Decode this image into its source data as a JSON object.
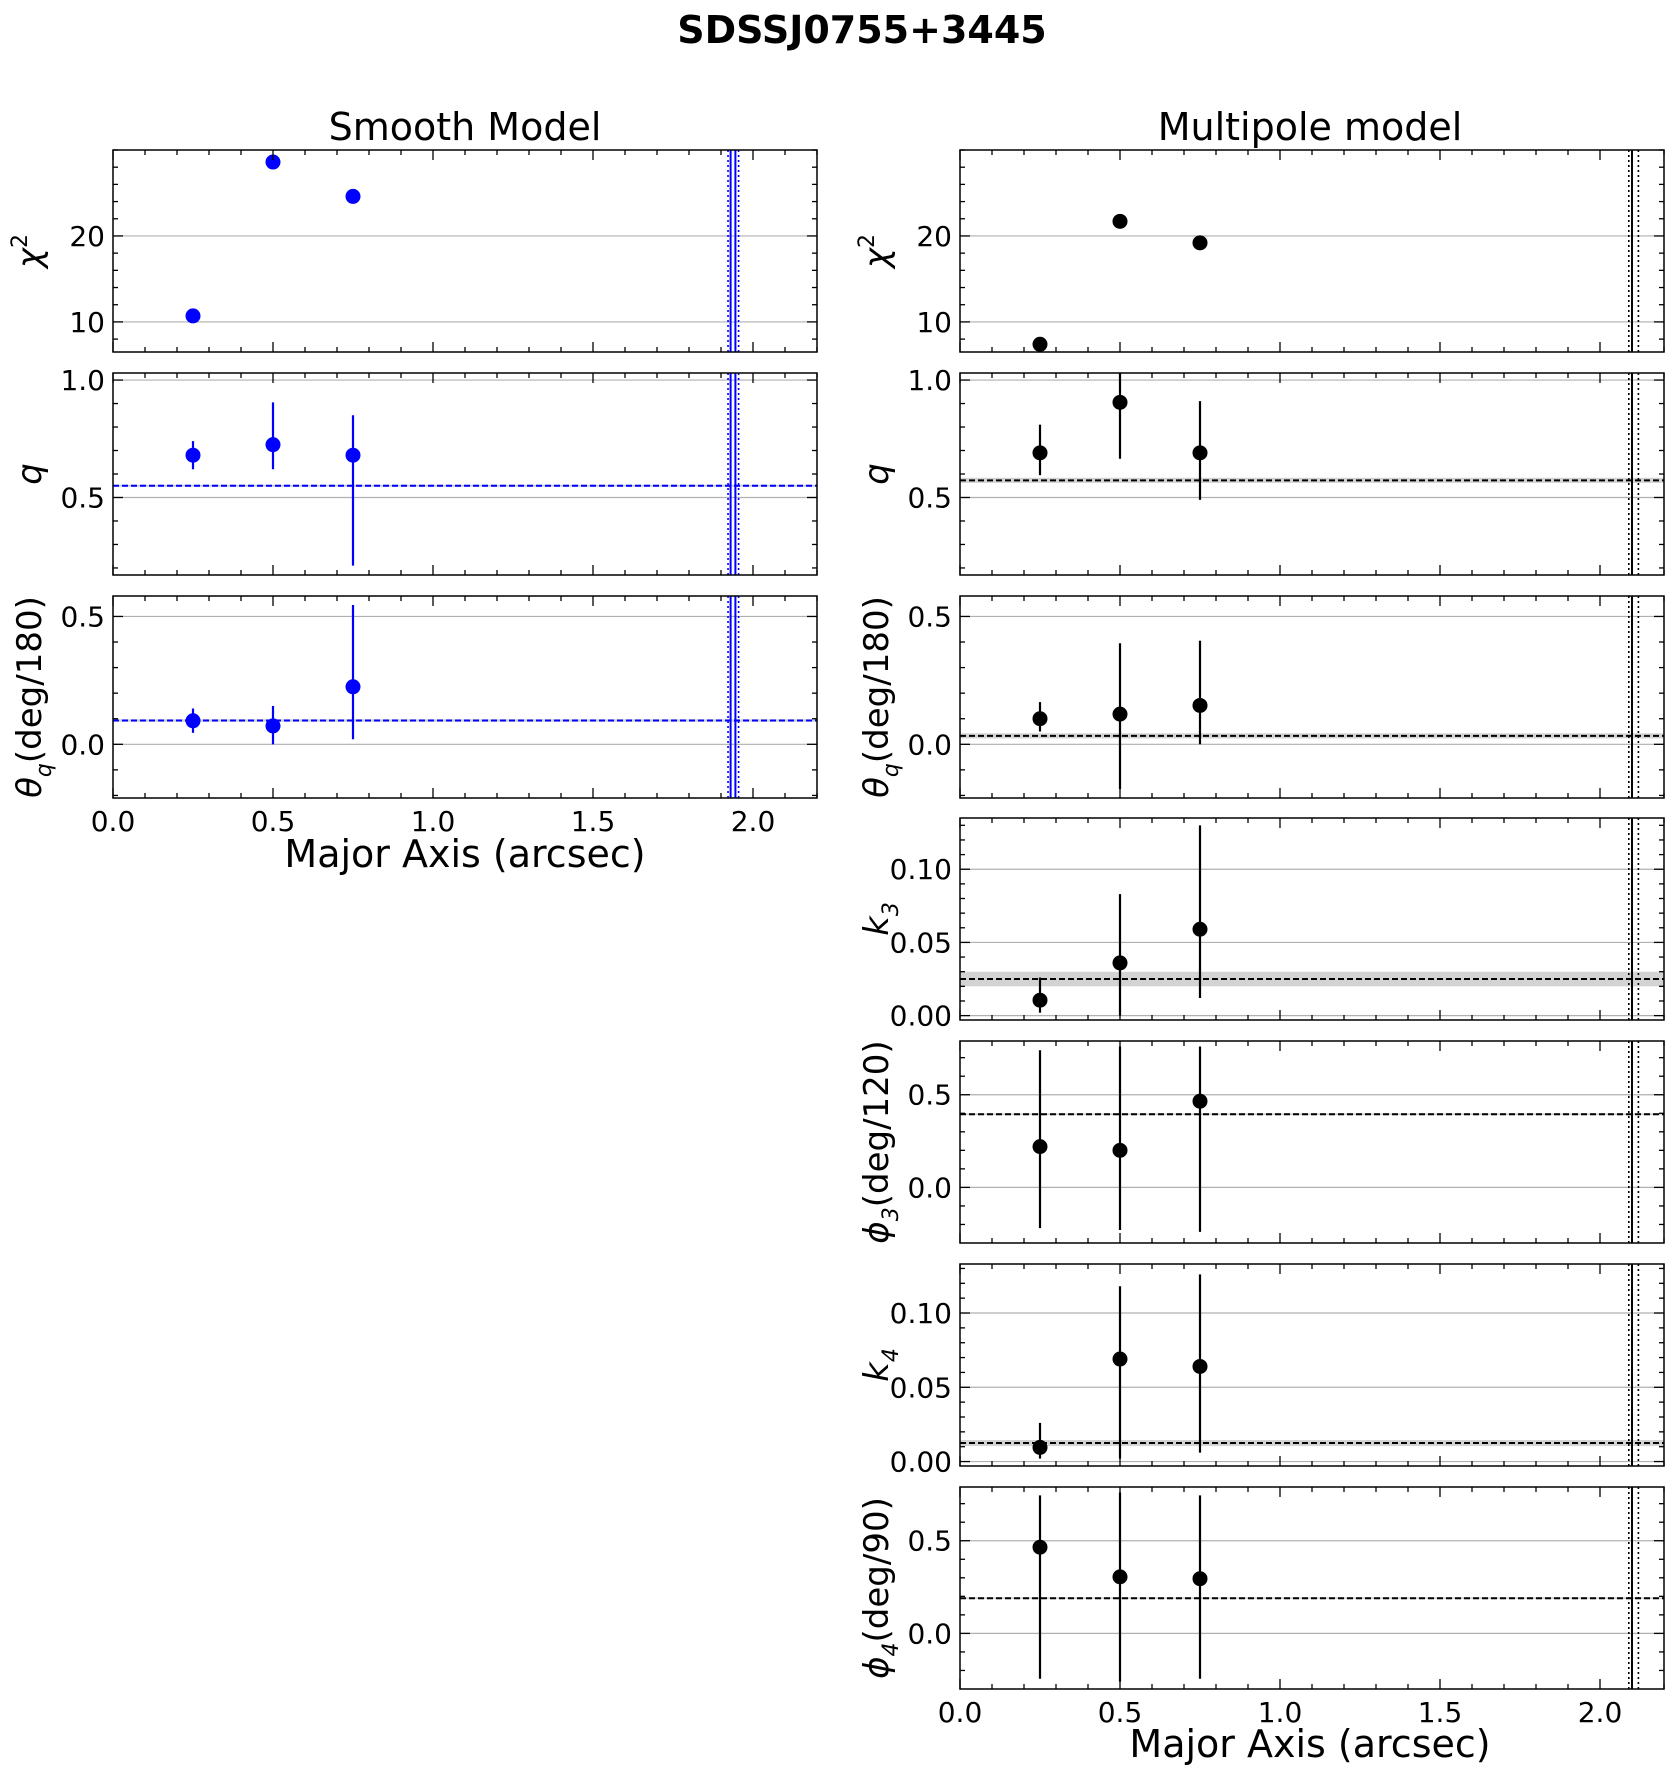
{
  "figure": {
    "title": "SDSSJ0755+3445",
    "left_column_title": "Smooth Model",
    "right_column_title": "Multipole model",
    "xlabel": "Major Axis (arcsec)",
    "xlim": [
      0.0,
      2.2
    ],
    "xticks": [
      0.0,
      0.5,
      1.0,
      1.5,
      2.0
    ],
    "xtick_labels": [
      "0.0",
      "0.5",
      "1.0",
      "1.5",
      "2.0"
    ],
    "colors": {
      "smooth": "#0000ff",
      "multipole": "#000000",
      "grid": "#b0b0b0",
      "band": "#c8c8c8"
    }
  },
  "chart_data": [
    {
      "id": "smooth-chi2",
      "panel": "smooth",
      "type": "scatter",
      "ylabel_main": "χ",
      "ylabel_sup": "2",
      "ylabel_sub": "",
      "ylabel_rest": "",
      "ylim": [
        6.5,
        30
      ],
      "yticks": [
        10,
        20
      ],
      "ytick_labels": [
        "10",
        "20"
      ],
      "points": [
        {
          "x": 0.25,
          "y": 10.7
        },
        {
          "x": 0.5,
          "y": 28.6
        },
        {
          "x": 0.75,
          "y": 24.6
        }
      ],
      "vlines": [
        1.93,
        1.945
      ],
      "vlines_dotted": [
        1.922,
        1.955
      ],
      "show_xticklabels": false
    },
    {
      "id": "smooth-q",
      "panel": "smooth",
      "type": "scatter",
      "ylabel_main": "q",
      "ylabel_sup": "",
      "ylabel_sub": "",
      "ylabel_rest": "",
      "ylim": [
        0.17,
        1.03
      ],
      "yticks": [
        0.5,
        1.0
      ],
      "ytick_labels": [
        "0.5",
        "1.0"
      ],
      "points": [
        {
          "x": 0.25,
          "y": 0.68,
          "yerr_low": 0.62,
          "yerr_high": 0.74
        },
        {
          "x": 0.5,
          "y": 0.725,
          "yerr_low": 0.62,
          "yerr_high": 0.905
        },
        {
          "x": 0.75,
          "y": 0.68,
          "yerr_low": 0.21,
          "yerr_high": 0.85
        }
      ],
      "hline": 0.55,
      "band": [
        0.545,
        0.555
      ],
      "vlines": [
        1.93,
        1.945
      ],
      "vlines_dotted": [
        1.922,
        1.955
      ],
      "show_xticklabels": false
    },
    {
      "id": "smooth-theta",
      "panel": "smooth",
      "type": "scatter",
      "ylabel_main": "θ",
      "ylabel_sup": "",
      "ylabel_sub": "q",
      "ylabel_rest": "(deg/180)",
      "ylim": [
        -0.21,
        0.58
      ],
      "yticks": [
        0.0,
        0.5
      ],
      "ytick_labels": [
        "0.0",
        "0.5"
      ],
      "points": [
        {
          "x": 0.25,
          "y": 0.092,
          "yerr_low": 0.045,
          "yerr_high": 0.14
        },
        {
          "x": 0.5,
          "y": 0.072,
          "yerr_low": 0.0,
          "yerr_high": 0.15
        },
        {
          "x": 0.75,
          "y": 0.225,
          "yerr_low": 0.02,
          "yerr_high": 0.545
        }
      ],
      "hline": 0.093,
      "band": [
        0.088,
        0.098
      ],
      "vlines": [
        1.93,
        1.945
      ],
      "vlines_dotted": [
        1.922,
        1.955
      ],
      "show_xticklabels": true
    },
    {
      "id": "multi-chi2",
      "panel": "multipole",
      "type": "scatter",
      "ylabel_main": "χ",
      "ylabel_sup": "2",
      "ylabel_sub": "",
      "ylabel_rest": "",
      "ylim": [
        6.5,
        30
      ],
      "yticks": [
        10,
        20
      ],
      "ytick_labels": [
        "10",
        "20"
      ],
      "points": [
        {
          "x": 0.25,
          "y": 7.4
        },
        {
          "x": 0.5,
          "y": 21.7
        },
        {
          "x": 0.75,
          "y": 19.2
        }
      ],
      "vlines": [
        2.1
      ],
      "vlines_dotted": [
        2.09,
        2.12
      ],
      "show_xticklabels": false
    },
    {
      "id": "multi-q",
      "panel": "multipole",
      "type": "scatter",
      "ylabel_main": "q",
      "ylabel_sup": "",
      "ylabel_sub": "",
      "ylabel_rest": "",
      "ylim": [
        0.17,
        1.03
      ],
      "yticks": [
        0.5,
        1.0
      ],
      "ytick_labels": [
        "0.5",
        "1.0"
      ],
      "points": [
        {
          "x": 0.25,
          "y": 0.69,
          "yerr_low": 0.595,
          "yerr_high": 0.81
        },
        {
          "x": 0.5,
          "y": 0.905,
          "yerr_low": 0.665,
          "yerr_high": 1.03
        },
        {
          "x": 0.75,
          "y": 0.69,
          "yerr_low": 0.49,
          "yerr_high": 0.91
        }
      ],
      "hline": 0.573,
      "band": [
        0.562,
        0.584
      ],
      "vlines": [
        2.1
      ],
      "vlines_dotted": [
        2.09,
        2.12
      ],
      "show_xticklabels": false
    },
    {
      "id": "multi-theta",
      "panel": "multipole",
      "type": "scatter",
      "ylabel_main": "θ",
      "ylabel_sup": "",
      "ylabel_sub": "q",
      "ylabel_rest": "(deg/180)",
      "ylim": [
        -0.21,
        0.58
      ],
      "yticks": [
        0.0,
        0.5
      ],
      "ytick_labels": [
        "0.0",
        "0.5"
      ],
      "points": [
        {
          "x": 0.25,
          "y": 0.1,
          "yerr_low": 0.05,
          "yerr_high": 0.165
        },
        {
          "x": 0.5,
          "y": 0.118,
          "yerr_low": -0.175,
          "yerr_high": 0.395
        },
        {
          "x": 0.75,
          "y": 0.152,
          "yerr_low": 0.0,
          "yerr_high": 0.405
        }
      ],
      "hline": 0.033,
      "band": [
        0.023,
        0.043
      ],
      "vlines": [
        2.1
      ],
      "vlines_dotted": [
        2.09,
        2.12
      ],
      "show_xticklabels": false
    },
    {
      "id": "multi-k3",
      "panel": "multipole",
      "type": "scatter",
      "ylabel_main": "k",
      "ylabel_sup": "",
      "ylabel_sub": "3",
      "ylabel_rest": "",
      "ylim": [
        -0.003,
        0.135
      ],
      "yticks": [
        0.0,
        0.05,
        0.1
      ],
      "ytick_labels": [
        "0.00",
        "0.05",
        "0.10"
      ],
      "points": [
        {
          "x": 0.25,
          "y": 0.0105,
          "yerr_low": 0.002,
          "yerr_high": 0.026
        },
        {
          "x": 0.5,
          "y": 0.036,
          "yerr_low": 0.0,
          "yerr_high": 0.083
        },
        {
          "x": 0.75,
          "y": 0.059,
          "yerr_low": 0.012,
          "yerr_high": 0.13
        }
      ],
      "hline": 0.025,
      "band": [
        0.02,
        0.03
      ],
      "vlines": [
        2.1
      ],
      "vlines_dotted": [
        2.09,
        2.12
      ],
      "show_xticklabels": false
    },
    {
      "id": "multi-phi3",
      "panel": "multipole",
      "type": "scatter",
      "ylabel_main": "ϕ",
      "ylabel_sup": "",
      "ylabel_sub": "3",
      "ylabel_rest": "(deg/120)",
      "ylim": [
        -0.3,
        0.79
      ],
      "yticks": [
        0.0,
        0.5
      ],
      "ytick_labels": [
        "0.0",
        "0.5"
      ],
      "points": [
        {
          "x": 0.25,
          "y": 0.22,
          "yerr_low": -0.22,
          "yerr_high": 0.74
        },
        {
          "x": 0.5,
          "y": 0.2,
          "yerr_low": -0.23,
          "yerr_high": 0.76
        },
        {
          "x": 0.75,
          "y": 0.465,
          "yerr_low": -0.24,
          "yerr_high": 0.76
        }
      ],
      "hline": 0.395,
      "band": [
        0.39,
        0.4
      ],
      "vlines": [
        2.1
      ],
      "vlines_dotted": [
        2.09,
        2.12
      ],
      "show_xticklabels": false
    },
    {
      "id": "multi-k4",
      "panel": "multipole",
      "type": "scatter",
      "ylabel_main": "k",
      "ylabel_sup": "",
      "ylabel_sub": "4",
      "ylabel_rest": "",
      "ylim": [
        -0.003,
        0.133
      ],
      "yticks": [
        0.0,
        0.05,
        0.1
      ],
      "ytick_labels": [
        "0.00",
        "0.05",
        "0.10"
      ],
      "points": [
        {
          "x": 0.25,
          "y": 0.0095,
          "yerr_low": 0.002,
          "yerr_high": 0.026
        },
        {
          "x": 0.5,
          "y": 0.069,
          "yerr_low": 0.002,
          "yerr_high": 0.118
        },
        {
          "x": 0.75,
          "y": 0.064,
          "yerr_low": 0.006,
          "yerr_high": 0.126
        }
      ],
      "hline": 0.0125,
      "band": [
        0.0105,
        0.0145
      ],
      "vlines": [
        2.1
      ],
      "vlines_dotted": [
        2.09,
        2.12
      ],
      "show_xticklabels": false
    },
    {
      "id": "multi-phi4",
      "panel": "multipole",
      "type": "scatter",
      "ylabel_main": "ϕ",
      "ylabel_sup": "",
      "ylabel_sub": "4",
      "ylabel_rest": "(deg/90)",
      "ylim": [
        -0.3,
        0.79
      ],
      "yticks": [
        0.0,
        0.5
      ],
      "ytick_labels": [
        "0.0",
        "0.5"
      ],
      "points": [
        {
          "x": 0.25,
          "y": 0.465,
          "yerr_low": -0.245,
          "yerr_high": 0.745
        },
        {
          "x": 0.5,
          "y": 0.305,
          "yerr_low": -0.26,
          "yerr_high": 0.76
        },
        {
          "x": 0.75,
          "y": 0.295,
          "yerr_low": -0.245,
          "yerr_high": 0.745
        }
      ],
      "hline": 0.19,
      "band": [
        0.185,
        0.195
      ],
      "vlines": [
        2.1
      ],
      "vlines_dotted": [
        2.09,
        2.12
      ],
      "show_xticklabels": true
    }
  ]
}
